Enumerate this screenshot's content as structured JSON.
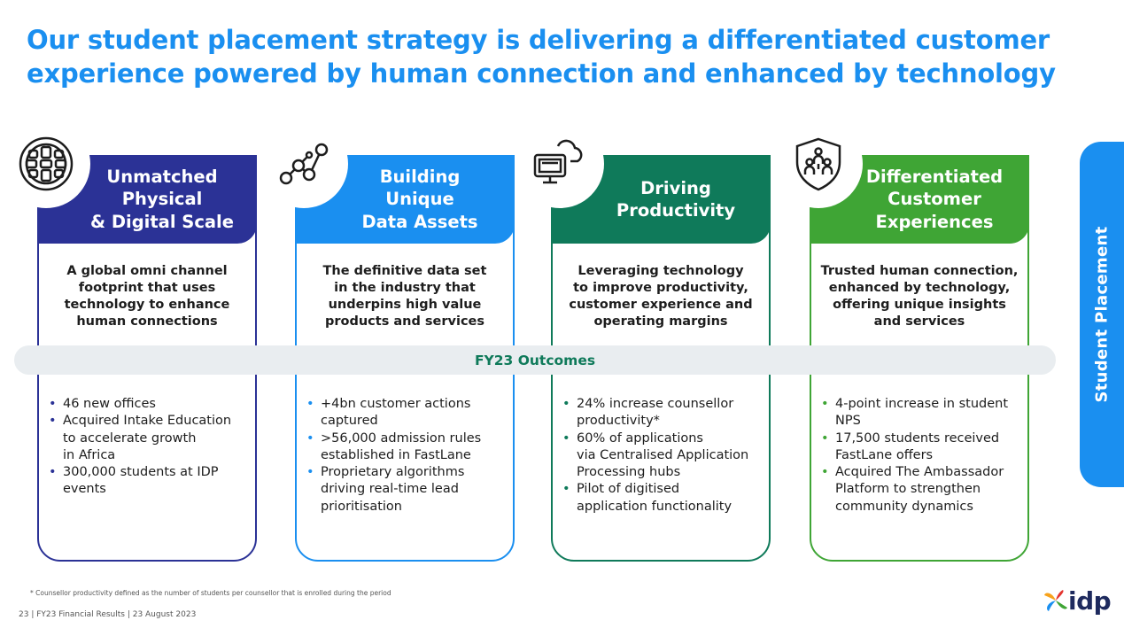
{
  "title": {
    "line1": "Our student placement strategy is delivering a differentiated customer",
    "line2": "experience powered by human connection and enhanced by technology"
  },
  "cards": [
    {
      "color": "#2b3296",
      "icon": "globe-icon",
      "heading": [
        "Unmatched",
        "Physical",
        "& Digital Scale"
      ],
      "description": [
        "A global omni channel",
        "footprint that uses",
        "technology to enhance",
        "human connections"
      ],
      "bullets": [
        [
          "46 new offices"
        ],
        [
          "Acquired Intake Education",
          "to accelerate growth",
          "in Africa"
        ],
        [
          "300,000 students at IDP",
          "events"
        ]
      ]
    },
    {
      "color": "#1a8ff0",
      "icon": "data-nodes-icon",
      "heading": [
        "Building",
        "Unique",
        "Data Assets"
      ],
      "description": [
        "The definitive data set",
        "in the industry that",
        "underpins high value",
        "products and services"
      ],
      "bullets": [
        [
          "+4bn customer actions",
          "captured"
        ],
        [
          ">56,000 admission rules",
          "established in FastLane"
        ],
        [
          "Proprietary algorithms",
          "driving real-time lead",
          "prioritisation"
        ]
      ]
    },
    {
      "color": "#0f7a5a",
      "icon": "cloud-computer-icon",
      "heading": [
        "Driving",
        "Productivity"
      ],
      "description": [
        "Leveraging technology",
        "to improve productivity,",
        "customer experience and",
        "operating margins"
      ],
      "bullets": [
        [
          "24% increase counsellor",
          "productivity*"
        ],
        [
          "60% of applications",
          "via Centralised Application",
          "Processing hubs"
        ],
        [
          "Pilot of digitised",
          "application functionality"
        ]
      ]
    },
    {
      "color": "#3fa535",
      "icon": "shield-people-icon",
      "heading": [
        "Differentiated",
        "Customer",
        "Experiences"
      ],
      "description": [
        "Trusted human connection,",
        "enhanced by technology,",
        "offering unique insights",
        "and services"
      ],
      "bullets": [
        [
          "4-point increase in student",
          "NPS"
        ],
        [
          "17,500 students received",
          "FastLane offers"
        ],
        [
          "Acquired The Ambassador",
          "Platform to strengthen",
          "community dynamics"
        ]
      ]
    }
  ],
  "outcomes_label": "FY23 Outcomes",
  "side_tab_label": "Student Placement",
  "footnote": "*  Counsellor productivity defined as the number of students per counsellor that is enrolled during the period",
  "footer": "23  |  FY23 Financial Results   |  23 August 2023",
  "logo_text": "idp"
}
